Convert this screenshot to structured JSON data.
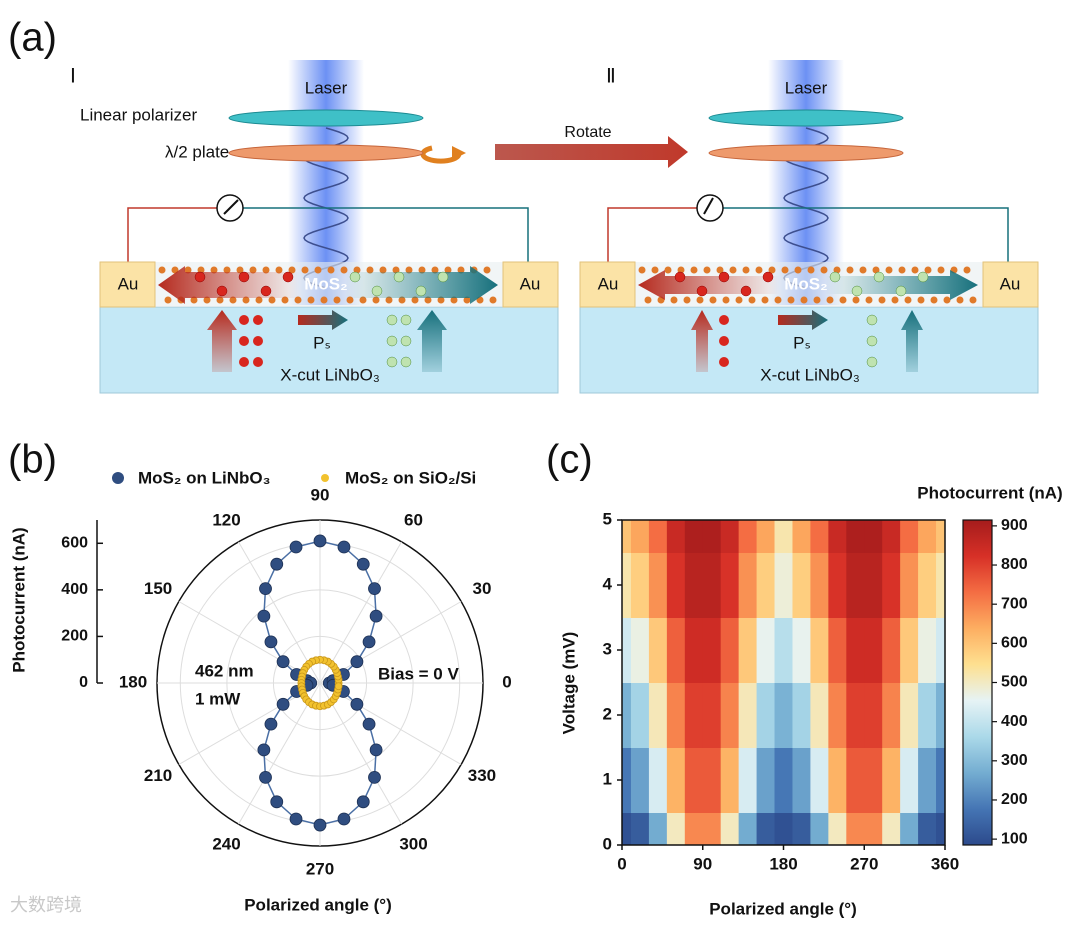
{
  "panel_labels": [
    "(a)",
    "(b)",
    "(c)"
  ],
  "diagram": {
    "stages": [
      "Ⅰ",
      "Ⅱ"
    ],
    "laser": "Laser",
    "polarizer": "Linear polarizer",
    "plate": "λ/2 plate",
    "rotate": "Rotate",
    "electrode": "Au",
    "channel": "MoS₂",
    "polarization": "Pₛ",
    "substrate": "X-cut LiNbO₃"
  },
  "watermark": "大数跨境",
  "chart_data": [
    {
      "type": "polar",
      "theta": [
        0,
        10,
        20,
        30,
        40,
        50,
        60,
        70,
        80,
        90,
        100,
        110,
        120,
        130,
        140,
        150,
        160,
        170,
        180,
        190,
        200,
        210,
        220,
        230,
        240,
        250,
        260,
        270,
        280,
        290,
        300,
        310,
        320,
        330,
        340,
        350
      ],
      "series": [
        {
          "name": "MoS₂ on LiNbO₃",
          "color": "#2f4d80",
          "values": [
            40,
            57,
            107,
            183,
            275,
            375,
            468,
            543,
            593,
            610,
            593,
            543,
            468,
            375,
            275,
            183,
            107,
            57,
            40,
            57,
            107,
            183,
            275,
            375,
            468,
            543,
            593,
            610,
            593,
            543,
            468,
            375,
            275,
            183,
            107,
            57
          ]
        },
        {
          "name": "MoS₂ on SiO₂/Si",
          "color": "#f2c22e",
          "values": [
            80,
            81,
            82,
            85,
            88,
            92,
            95,
            98,
            99,
            100,
            99,
            98,
            95,
            92,
            88,
            85,
            82,
            81,
            80,
            81,
            82,
            85,
            88,
            92,
            95,
            98,
            99,
            100,
            99,
            98,
            95,
            92,
            88,
            85,
            82,
            81
          ]
        }
      ],
      "rlim": [
        0,
        700
      ],
      "rticks": [
        0,
        200,
        400,
        600
      ],
      "thetaticks": [
        0,
        30,
        60,
        90,
        120,
        150,
        180,
        210,
        240,
        270,
        300,
        330
      ],
      "ylabel": "Photocurrent (nA)",
      "xlabel": "Polarized angle (°)",
      "annotations": [
        "462 nm",
        "1 mW",
        "Bias = 0 V"
      ],
      "grid": true
    },
    {
      "type": "heatmap",
      "x": [
        0,
        20,
        40,
        60,
        80,
        100,
        120,
        140,
        160,
        180,
        200,
        220,
        240,
        260,
        280,
        300,
        320,
        340,
        360
      ],
      "y": [
        0,
        1,
        2,
        3,
        4,
        5
      ],
      "values": [
        [
          100,
          125,
          267,
          503,
          692,
          692,
          503,
          267,
          125,
          100,
          125,
          267,
          503,
          692,
          692,
          503,
          267,
          125,
          100
        ],
        [
          180,
          250,
          430,
          630,
          760,
          760,
          630,
          430,
          250,
          180,
          250,
          430,
          630,
          760,
          760,
          630,
          430,
          250,
          180
        ],
        [
          280,
          350,
          510,
          700,
          800,
          800,
          700,
          510,
          350,
          280,
          350,
          510,
          700,
          800,
          800,
          700,
          510,
          350,
          280
        ],
        [
          420,
          470,
          590,
          750,
          840,
          840,
          750,
          590,
          460,
          380,
          460,
          590,
          750,
          840,
          840,
          750,
          590,
          470,
          420
        ],
        [
          520,
          580,
          680,
          820,
          880,
          880,
          820,
          680,
          580,
          480,
          580,
          680,
          820,
          880,
          880,
          820,
          680,
          580,
          520
        ],
        [
          600,
          650,
          730,
          850,
          900,
          900,
          850,
          730,
          650,
          520,
          650,
          730,
          850,
          900,
          900,
          850,
          730,
          650,
          600
        ]
      ],
      "xlim": [
        0,
        360
      ],
      "ylim": [
        0,
        5
      ],
      "xticks": [
        0,
        90,
        180,
        270,
        360
      ],
      "yticks": [
        0,
        1,
        2,
        3,
        4,
        5
      ],
      "clim": [
        85,
        915
      ],
      "cticks": [
        100,
        200,
        300,
        400,
        500,
        600,
        700,
        800,
        900
      ],
      "colormap": [
        "#2c4a8c",
        "#4575b4",
        "#74add1",
        "#abd9e9",
        "#e6f3f5",
        "#fee090",
        "#fdae61",
        "#f46d43",
        "#d73027",
        "#a51c1c"
      ],
      "xlabel": "Polarized angle (°)",
      "ylabel": "Voltage (mV)",
      "colorbar_label": "Photocurrent (nA)"
    }
  ]
}
